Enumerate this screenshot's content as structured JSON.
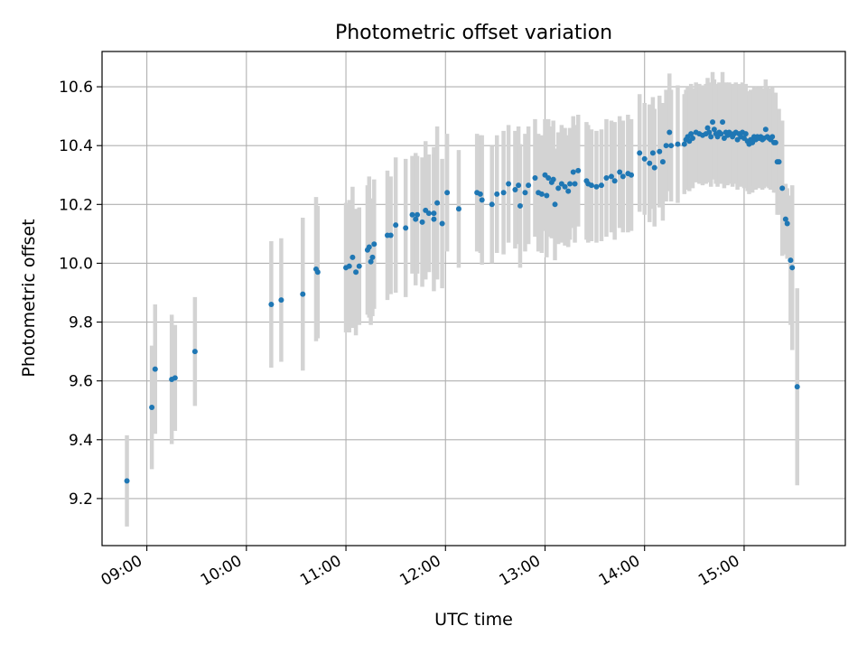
{
  "chart_data": {
    "type": "scatter",
    "title": "Photometric offset variation",
    "xlabel": "UTC time",
    "ylabel": "Photometric offset",
    "x_tick_labels": [
      "09:00",
      "10:00",
      "11:00",
      "12:00",
      "13:00",
      "14:00",
      "15:00"
    ],
    "x_tick_values": [
      "09:00",
      "10:00",
      "11:00",
      "12:00",
      "13:00",
      "14:00",
      "15:00"
    ],
    "y_ticks": [
      9.2,
      9.4,
      9.6,
      9.8,
      10.0,
      10.2,
      10.4,
      10.6
    ],
    "xlim": [
      "08:33",
      "16:01"
    ],
    "ylim": [
      9.04,
      10.72
    ],
    "grid": true,
    "colors": {
      "points": "#1f77b4",
      "error_bars": "#d3d3d3",
      "grid": "#b0b0b0"
    },
    "series": [
      {
        "points": [
          {
            "t": "08:48",
            "y": 9.26,
            "err": 0.155
          },
          {
            "t": "09:03",
            "y": 9.51,
            "err": 0.21
          },
          {
            "t": "09:05",
            "y": 9.64,
            "err": 0.22
          },
          {
            "t": "09:15",
            "y": 9.605,
            "err": 0.22
          },
          {
            "t": "09:17",
            "y": 9.61,
            "err": 0.18
          },
          {
            "t": "09:29",
            "y": 9.7,
            "err": 0.185
          },
          {
            "t": "10:15",
            "y": 9.86,
            "err": 0.215
          },
          {
            "t": "10:21",
            "y": 9.875,
            "err": 0.21
          },
          {
            "t": "10:34",
            "y": 9.895,
            "err": 0.26
          },
          {
            "t": "10:42",
            "y": 9.98,
            "err": 0.245
          },
          {
            "t": "10:43",
            "y": 9.97,
            "err": 0.225
          },
          {
            "t": "11:00",
            "y": 9.985,
            "err": 0.22
          },
          {
            "t": "11:02",
            "y": 9.99,
            "err": 0.225
          },
          {
            "t": "11:04",
            "y": 10.02,
            "err": 0.24
          },
          {
            "t": "11:06",
            "y": 9.97,
            "err": 0.215
          },
          {
            "t": "11:08",
            "y": 9.99,
            "err": 0.2
          },
          {
            "t": "11:13",
            "y": 10.045,
            "err": 0.22
          },
          {
            "t": "11:14",
            "y": 10.055,
            "err": 0.24
          },
          {
            "t": "11:15",
            "y": 10.005,
            "err": 0.215
          },
          {
            "t": "11:16",
            "y": 10.02,
            "err": 0.2
          },
          {
            "t": "11:17",
            "y": 10.065,
            "err": 0.22
          },
          {
            "t": "11:25",
            "y": 10.095,
            "err": 0.22
          },
          {
            "t": "11:27",
            "y": 10.095,
            "err": 0.2
          },
          {
            "t": "11:30",
            "y": 10.13,
            "err": 0.23
          },
          {
            "t": "11:36",
            "y": 10.12,
            "err": 0.235
          },
          {
            "t": "11:40",
            "y": 10.165,
            "err": 0.2
          },
          {
            "t": "11:42",
            "y": 10.15,
            "err": 0.225
          },
          {
            "t": "11:43",
            "y": 10.165,
            "err": 0.2
          },
          {
            "t": "11:46",
            "y": 10.14,
            "err": 0.22
          },
          {
            "t": "11:48",
            "y": 10.18,
            "err": 0.235
          },
          {
            "t": "11:50",
            "y": 10.17,
            "err": 0.2
          },
          {
            "t": "11:53",
            "y": 10.15,
            "err": 0.245
          },
          {
            "t": "11:53",
            "y": 10.17,
            "err": 0.2
          },
          {
            "t": "11:55",
            "y": 10.205,
            "err": 0.26
          },
          {
            "t": "11:58",
            "y": 10.135,
            "err": 0.22
          },
          {
            "t": "12:01",
            "y": 10.24,
            "err": 0.2
          },
          {
            "t": "12:08",
            "y": 10.185,
            "err": 0.2
          },
          {
            "t": "12:19",
            "y": 10.24,
            "err": 0.2
          },
          {
            "t": "12:21",
            "y": 10.235,
            "err": 0.2
          },
          {
            "t": "12:22",
            "y": 10.215,
            "err": 0.22
          },
          {
            "t": "12:28",
            "y": 10.2,
            "err": 0.2
          },
          {
            "t": "12:31",
            "y": 10.235,
            "err": 0.2
          },
          {
            "t": "12:35",
            "y": 10.24,
            "err": 0.21
          },
          {
            "t": "12:38",
            "y": 10.27,
            "err": 0.2
          },
          {
            "t": "12:42",
            "y": 10.25,
            "err": 0.2
          },
          {
            "t": "12:44",
            "y": 10.265,
            "err": 0.2
          },
          {
            "t": "12:45",
            "y": 10.195,
            "err": 0.21
          },
          {
            "t": "12:48",
            "y": 10.24,
            "err": 0.2
          },
          {
            "t": "12:50",
            "y": 10.265,
            "err": 0.2
          },
          {
            "t": "12:54",
            "y": 10.29,
            "err": 0.2
          },
          {
            "t": "12:56",
            "y": 10.24,
            "err": 0.2
          },
          {
            "t": "12:58",
            "y": 10.235,
            "err": 0.2
          },
          {
            "t": "13:00",
            "y": 10.3,
            "err": 0.19
          },
          {
            "t": "13:01",
            "y": 10.23,
            "err": 0.21
          },
          {
            "t": "13:02",
            "y": 10.29,
            "err": 0.2
          },
          {
            "t": "13:04",
            "y": 10.275,
            "err": 0.19
          },
          {
            "t": "13:05",
            "y": 10.285,
            "err": 0.2
          },
          {
            "t": "13:06",
            "y": 10.2,
            "err": 0.19
          },
          {
            "t": "13:08",
            "y": 10.255,
            "err": 0.19
          },
          {
            "t": "13:10",
            "y": 10.27,
            "err": 0.2
          },
          {
            "t": "13:12",
            "y": 10.26,
            "err": 0.2
          },
          {
            "t": "13:14",
            "y": 10.245,
            "err": 0.19
          },
          {
            "t": "13:15",
            "y": 10.27,
            "err": 0.19
          },
          {
            "t": "13:17",
            "y": 10.31,
            "err": 0.19
          },
          {
            "t": "13:18",
            "y": 10.27,
            "err": 0.2
          },
          {
            "t": "13:20",
            "y": 10.315,
            "err": 0.19
          },
          {
            "t": "13:25",
            "y": 10.28,
            "err": 0.2
          },
          {
            "t": "13:26",
            "y": 10.27,
            "err": 0.2
          },
          {
            "t": "13:28",
            "y": 10.265,
            "err": 0.19
          },
          {
            "t": "13:31",
            "y": 10.26,
            "err": 0.19
          },
          {
            "t": "13:34",
            "y": 10.265,
            "err": 0.19
          },
          {
            "t": "13:37",
            "y": 10.29,
            "err": 0.2
          },
          {
            "t": "13:40",
            "y": 10.295,
            "err": 0.19
          },
          {
            "t": "13:42",
            "y": 10.28,
            "err": 0.2
          },
          {
            "t": "13:45",
            "y": 10.31,
            "err": 0.19
          },
          {
            "t": "13:47",
            "y": 10.295,
            "err": 0.19
          },
          {
            "t": "13:50",
            "y": 10.305,
            "err": 0.2
          },
          {
            "t": "13:52",
            "y": 10.3,
            "err": 0.19
          },
          {
            "t": "13:57",
            "y": 10.375,
            "err": 0.2
          },
          {
            "t": "14:00",
            "y": 10.355,
            "err": 0.19
          },
          {
            "t": "14:03",
            "y": 10.34,
            "err": 0.2
          },
          {
            "t": "14:05",
            "y": 10.375,
            "err": 0.19
          },
          {
            "t": "14:06",
            "y": 10.325,
            "err": 0.2
          },
          {
            "t": "14:09",
            "y": 10.38,
            "err": 0.19
          },
          {
            "t": "14:11",
            "y": 10.345,
            "err": 0.2
          },
          {
            "t": "14:13",
            "y": 10.4,
            "err": 0.19
          },
          {
            "t": "14:15",
            "y": 10.445,
            "err": 0.2
          },
          {
            "t": "14:16",
            "y": 10.4,
            "err": 0.19
          },
          {
            "t": "14:20",
            "y": 10.405,
            "err": 0.2
          },
          {
            "t": "14:24",
            "y": 10.405,
            "err": 0.17
          },
          {
            "t": "14:25",
            "y": 10.42,
            "err": 0.17
          },
          {
            "t": "14:26",
            "y": 10.43,
            "err": 0.17
          },
          {
            "t": "14:27",
            "y": 10.415,
            "err": 0.17
          },
          {
            "t": "14:28",
            "y": 10.44,
            "err": 0.17
          },
          {
            "t": "14:29",
            "y": 10.425,
            "err": 0.17
          },
          {
            "t": "14:31",
            "y": 10.445,
            "err": 0.17
          },
          {
            "t": "14:33",
            "y": 10.44,
            "err": 0.17
          },
          {
            "t": "14:35",
            "y": 10.435,
            "err": 0.17
          },
          {
            "t": "14:37",
            "y": 10.44,
            "err": 0.17
          },
          {
            "t": "14:38",
            "y": 10.46,
            "err": 0.17
          },
          {
            "t": "14:39",
            "y": 10.445,
            "err": 0.17
          },
          {
            "t": "14:40",
            "y": 10.43,
            "err": 0.17
          },
          {
            "t": "14:41",
            "y": 10.48,
            "err": 0.17
          },
          {
            "t": "14:42",
            "y": 10.455,
            "err": 0.17
          },
          {
            "t": "14:43",
            "y": 10.44,
            "err": 0.17
          },
          {
            "t": "14:44",
            "y": 10.43,
            "err": 0.17
          },
          {
            "t": "14:45",
            "y": 10.445,
            "err": 0.17
          },
          {
            "t": "14:46",
            "y": 10.44,
            "err": 0.17
          },
          {
            "t": "14:47",
            "y": 10.48,
            "err": 0.17
          },
          {
            "t": "14:48",
            "y": 10.425,
            "err": 0.17
          },
          {
            "t": "14:49",
            "y": 10.445,
            "err": 0.17
          },
          {
            "t": "14:50",
            "y": 10.435,
            "err": 0.17
          },
          {
            "t": "14:51",
            "y": 10.445,
            "err": 0.17
          },
          {
            "t": "14:52",
            "y": 10.44,
            "err": 0.17
          },
          {
            "t": "14:53",
            "y": 10.43,
            "err": 0.17
          },
          {
            "t": "14:54",
            "y": 10.44,
            "err": 0.17
          },
          {
            "t": "14:55",
            "y": 10.445,
            "err": 0.17
          },
          {
            "t": "14:56",
            "y": 10.42,
            "err": 0.17
          },
          {
            "t": "14:57",
            "y": 10.44,
            "err": 0.17
          },
          {
            "t": "14:58",
            "y": 10.43,
            "err": 0.17
          },
          {
            "t": "14:59",
            "y": 10.445,
            "err": 0.17
          },
          {
            "t": "15:00",
            "y": 10.425,
            "err": 0.17
          },
          {
            "t": "15:01",
            "y": 10.44,
            "err": 0.17
          },
          {
            "t": "15:02",
            "y": 10.415,
            "err": 0.17
          },
          {
            "t": "15:03",
            "y": 10.405,
            "err": 0.17
          },
          {
            "t": "15:04",
            "y": 10.42,
            "err": 0.17
          },
          {
            "t": "15:05",
            "y": 10.41,
            "err": 0.17
          },
          {
            "t": "15:06",
            "y": 10.43,
            "err": 0.17
          },
          {
            "t": "15:07",
            "y": 10.42,
            "err": 0.17
          },
          {
            "t": "15:08",
            "y": 10.43,
            "err": 0.17
          },
          {
            "t": "15:09",
            "y": 10.425,
            "err": 0.17
          },
          {
            "t": "15:10",
            "y": 10.43,
            "err": 0.17
          },
          {
            "t": "15:11",
            "y": 10.42,
            "err": 0.17
          },
          {
            "t": "15:12",
            "y": 10.425,
            "err": 0.17
          },
          {
            "t": "15:13",
            "y": 10.455,
            "err": 0.17
          },
          {
            "t": "15:14",
            "y": 10.43,
            "err": 0.17
          },
          {
            "t": "15:15",
            "y": 10.425,
            "err": 0.17
          },
          {
            "t": "15:16",
            "y": 10.42,
            "err": 0.17
          },
          {
            "t": "15:17",
            "y": 10.43,
            "err": 0.17
          },
          {
            "t": "15:18",
            "y": 10.41,
            "err": 0.17
          },
          {
            "t": "15:19",
            "y": 10.41,
            "err": 0.17
          },
          {
            "t": "15:20",
            "y": 10.345,
            "err": 0.18
          },
          {
            "t": "15:21",
            "y": 10.345,
            "err": 0.18
          },
          {
            "t": "15:23",
            "y": 10.255,
            "err": 0.23
          },
          {
            "t": "15:25",
            "y": 10.15,
            "err": 0.12
          },
          {
            "t": "15:26",
            "y": 10.135,
            "err": 0.12
          },
          {
            "t": "15:28",
            "y": 10.01,
            "err": 0.22
          },
          {
            "t": "15:29",
            "y": 9.985,
            "err": 0.28
          },
          {
            "t": "15:32",
            "y": 9.58,
            "err": 0.335
          }
        ]
      }
    ]
  }
}
